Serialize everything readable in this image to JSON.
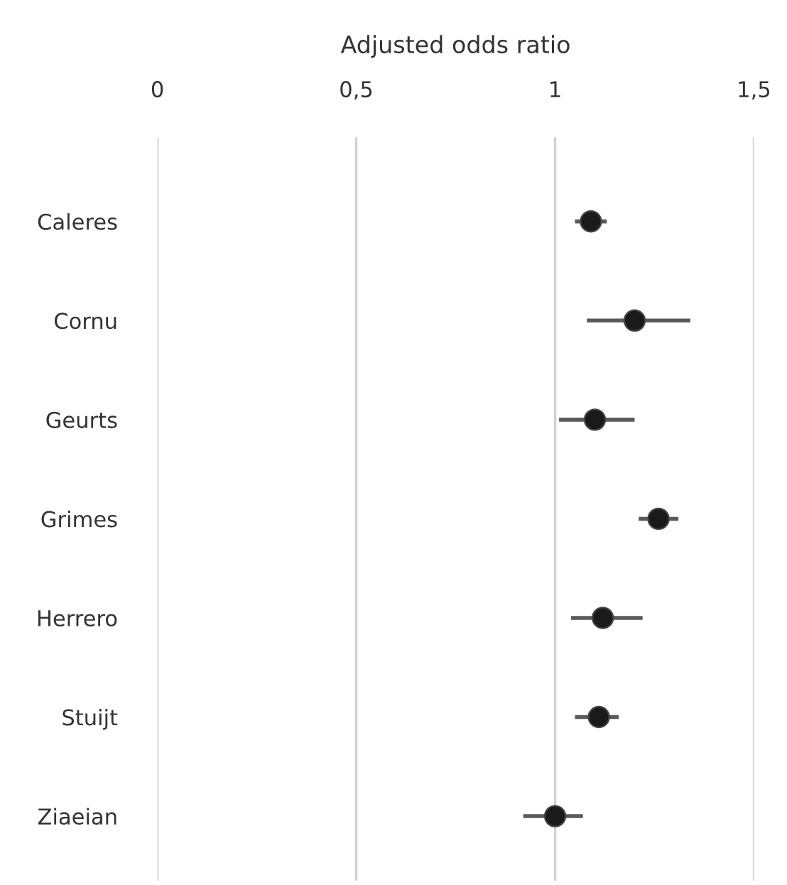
{
  "chart_data": {
    "type": "scatter",
    "orientation": "horizontal",
    "xlabel": "Adjusted odds ratio",
    "categories": [
      "Caleres",
      "Cornu",
      "Geurts",
      "Grimes",
      "Herrero",
      "Stuijt",
      "Ziaeian"
    ],
    "series": [
      {
        "color": "#1a1a1a",
        "values": [
          1.09,
          1.2,
          1.1,
          1.26,
          1.12,
          1.11,
          1.0
        ],
        "errors": [
          [
            1.05,
            1.13
          ],
          [
            1.08,
            1.34
          ],
          [
            1.01,
            1.2
          ],
          [
            1.21,
            1.31
          ],
          [
            1.04,
            1.22
          ],
          [
            1.05,
            1.16
          ],
          [
            0.92,
            1.07
          ]
        ]
      }
    ],
    "xlim": [
      0,
      1.5
    ],
    "xticks": [
      0,
      {
        "value": 0.5,
        "label": "0,5"
      },
      1,
      {
        "value": 1.5,
        "label": "1,5"
      }
    ],
    "grid": "x",
    "marker": "circle",
    "legend": false
  }
}
